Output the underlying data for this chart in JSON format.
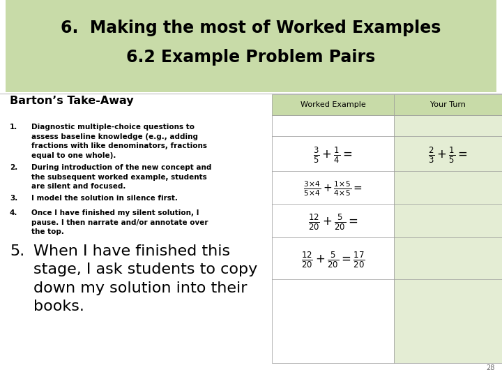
{
  "title_line1": "6.  Making the most of Worked Examples",
  "title_line2": "6.2 Example Problem Pairs",
  "title_bg_color": "#c8dba8",
  "slide_bg_color": "#ffffff",
  "header_bg_color": "#c8dba8",
  "your_turn_header_bg": "#c8dba8",
  "section_title": "Barton’s Take-Away",
  "col_header_worked": "Worked Example",
  "col_header_your_turn": "Your Turn",
  "items": [
    {
      "num": "1.",
      "text": "Diagnostic multiple-choice questions to\nassess baseline knowledge (e.g., adding\nfractions with like denominators, fractions\nequal to one whole)."
    },
    {
      "num": "2.",
      "text": "During introduction of the new concept and\nthe subsequent worked example, students\nare silent and focused."
    },
    {
      "num": "3.",
      "text": "I model the solution in silence first."
    },
    {
      "num": "4.",
      "text": "Once I have finished my silent solution, I\npause. I then narrate and/or annotate over\nthe top."
    }
  ],
  "item5_num": "5.",
  "item5_text": "When I have finished this\nstage, I ask students to copy\ndown my solution into their\nbooks.",
  "page_num": "28",
  "worked_col_bg": "#ffffff",
  "your_turn_col_bg": "#e4edd4",
  "border_color": "#999999",
  "math_step1": "$\\frac{3}{5} + \\frac{1}{4} =$",
  "math_step2_a": "$\\frac{3{\\times}4}{5{\\times}4}$",
  "math_step2_b": "$\\frac{1{\\times}5}{4{\\times}5}$",
  "math_step3": "$\\frac{12}{20} + \\frac{5}{20} =$",
  "math_step4": "$\\frac{12}{20} + \\frac{5}{20} = \\frac{17}{20}$",
  "your_turn_math": "$\\frac{2}{3} + \\frac{1}{5} =$"
}
